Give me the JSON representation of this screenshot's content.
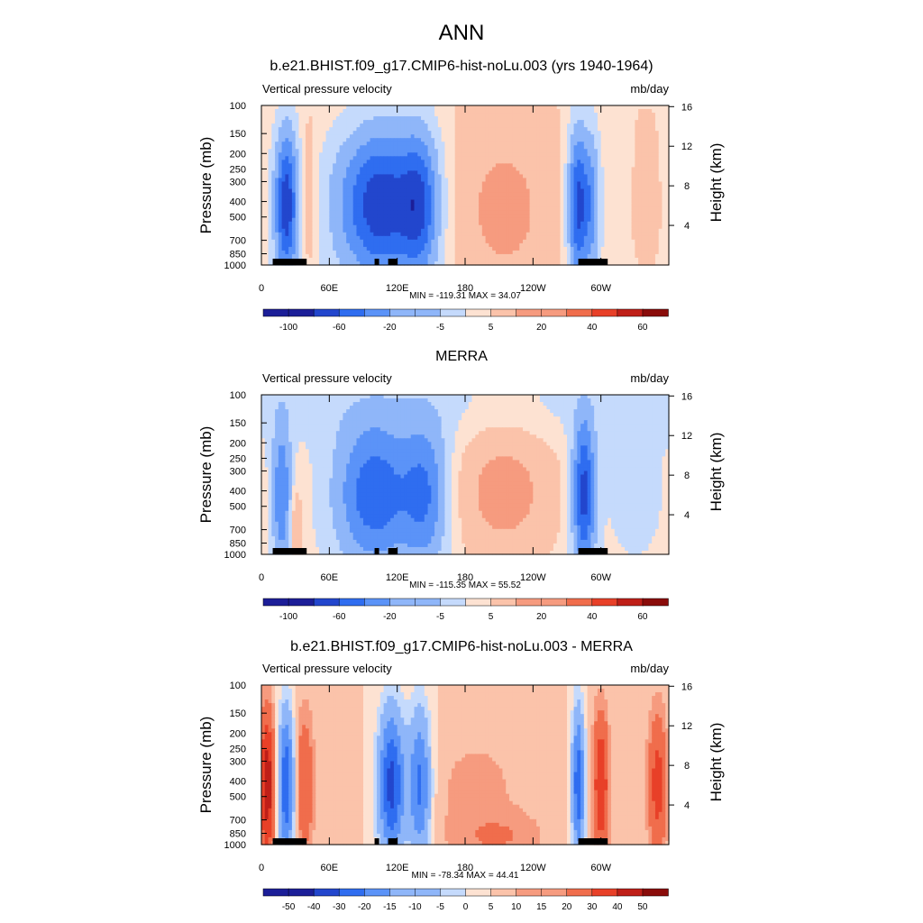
{
  "figure_title": "ANN",
  "colors": {
    "ramp_11": [
      "#1c1e98",
      "#2246cd",
      "#2f6df0",
      "#5b93f8",
      "#8fb6f9",
      "#c5dafc",
      "#fde2d2",
      "#fbc3aa",
      "#f69b7f",
      "#f06d4c",
      "#e84028",
      "#bf1f18",
      "#8a0c0a"
    ],
    "land": "#000000",
    "background": "#ffffff"
  },
  "chart_data": [
    {
      "type": "heatmap",
      "id": "panel1",
      "title": "b.e21.BHIST.f09_g17.CMIP6-hist-noLu.003 (yrs 1940-1964)",
      "left_label": "Vertical pressure velocity",
      "right_label": "mb/day",
      "ylabel": "Pressure (mb)",
      "ylabel_right": "Height (km)",
      "yticks": [
        "100",
        "150",
        "200",
        "250",
        "300",
        "400",
        "500",
        "700",
        "850",
        "1000"
      ],
      "yticks_right": [
        "16",
        "12",
        "8",
        "4"
      ],
      "xticks": [
        "0",
        "60E",
        "120E",
        "180",
        "120W",
        "60W"
      ],
      "min": -119.31,
      "max": 34.07,
      "stats": "MIN = -119.31  MAX =  34.07",
      "colorbar_labels": [
        "-100",
        "-60",
        "-20",
        "-5",
        "5",
        "20",
        "40",
        "60"
      ]
    },
    {
      "type": "heatmap",
      "id": "panel2",
      "title": "MERRA",
      "left_label": "Vertical pressure velocity",
      "right_label": "mb/day",
      "ylabel": "Pressure (mb)",
      "ylabel_right": "Height (km)",
      "yticks": [
        "100",
        "150",
        "200",
        "250",
        "300",
        "400",
        "500",
        "700",
        "850",
        "1000"
      ],
      "yticks_right": [
        "16",
        "12",
        "8",
        "4"
      ],
      "xticks": [
        "0",
        "60E",
        "120E",
        "180",
        "120W",
        "60W"
      ],
      "min": -115.35,
      "max": 55.52,
      "stats": "MIN = -115.35  MAX =  55.52",
      "colorbar_labels": [
        "-100",
        "-60",
        "-20",
        "-5",
        "5",
        "20",
        "40",
        "60"
      ]
    },
    {
      "type": "heatmap",
      "id": "panel3",
      "title": "b.e21.BHIST.f09_g17.CMIP6-hist-noLu.003 - MERRA",
      "left_label": "Vertical pressure velocity",
      "right_label": "mb/day",
      "ylabel": "Pressure (mb)",
      "ylabel_right": "Height (km)",
      "yticks": [
        "100",
        "150",
        "200",
        "250",
        "300",
        "400",
        "500",
        "700",
        "850",
        "1000"
      ],
      "yticks_right": [
        "16",
        "12",
        "8",
        "4"
      ],
      "xticks": [
        "0",
        "60E",
        "120E",
        "180",
        "120W",
        "60W"
      ],
      "min": -78.34,
      "max": 44.41,
      "stats": "MIN = -78.34  MAX =  44.41",
      "colorbar_labels": [
        "-50",
        "-40",
        "-30",
        "-20",
        "-15",
        "-10",
        "-5",
        "0",
        "5",
        "10",
        "15",
        "20",
        "30",
        "40",
        "50"
      ]
    }
  ]
}
